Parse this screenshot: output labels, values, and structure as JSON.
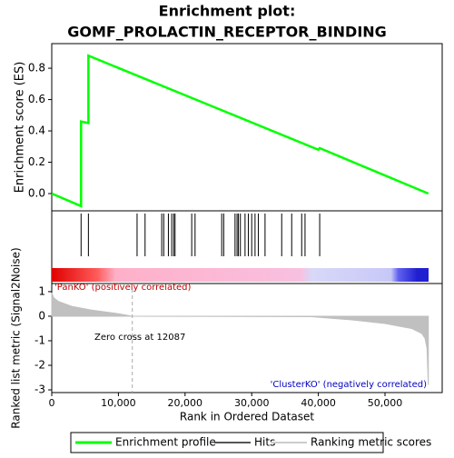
{
  "chart_data": [
    {
      "type": "line",
      "title": "Enrichment plot:",
      "subtitle": "GOMF_PROLACTIN_RECEPTOR_BINDING",
      "y_label": "Enrichment score (ES)",
      "xlim": [
        0,
        58580
      ],
      "ylim": [
        -0.11,
        0.957
      ],
      "yticks": [
        {
          "value": 0,
          "label": "0.0"
        },
        0.2,
        0.4,
        0.6,
        0.8
      ],
      "series": [
        {
          "name": "Enrichment profile",
          "color": "#00ff00",
          "x": [
            0,
            4400,
            4400,
            5500,
            5500,
            40000,
            40200,
            56500
          ],
          "values": [
            0,
            -0.08,
            0.46,
            0.45,
            0.88,
            0.28,
            0.29,
            0
          ]
        }
      ],
      "hits": {
        "name": "Hits",
        "color": "#000000",
        "x": [
          4400,
          5500,
          12800,
          14000,
          16500,
          16800,
          17500,
          18000,
          18300,
          18500,
          21000,
          21500,
          25500,
          25800,
          27500,
          27800,
          28000,
          28300,
          29000,
          29500,
          30000,
          30500,
          31000,
          32000,
          34500,
          36000,
          37500,
          38000,
          40200
        ]
      }
    },
    {
      "type": "area",
      "x_label": "Rank in Ordered Dataset",
      "y_label": "Ranked list metric (Signal2Noise)",
      "xlim": [
        0,
        58580
      ],
      "ylim": [
        -3.11,
        1.33
      ],
      "xticks": [
        0,
        {
          "value": 10000,
          "label": "10,000"
        },
        {
          "value": 20000,
          "label": "20,000"
        },
        {
          "value": 30000,
          "label": "30,000"
        },
        {
          "value": 40000,
          "label": "40,000"
        },
        {
          "value": 50000,
          "label": "50,000"
        }
      ],
      "yticks": [
        1,
        0,
        -1,
        -2,
        -3
      ],
      "series": [
        {
          "name": "Ranking metric scores",
          "color": "#c0c0c0",
          "x": [
            0,
            300,
            1000,
            3000,
            6000,
            10000,
            12087,
            39000,
            45000,
            50000,
            54000,
            55500,
            56000,
            56300,
            56500
          ],
          "values": [
            0.95,
            0.75,
            0.6,
            0.4,
            0.25,
            0.1,
            0,
            -0.02,
            -0.15,
            -0.3,
            -0.5,
            -0.7,
            -0.9,
            -1.3,
            -2.8
          ]
        }
      ],
      "zero_cross": 12087,
      "annotations": [
        "'PanKO' (positively correlated)",
        "Zero cross at 12087",
        "'ClusterKO' (negatively correlated)"
      ]
    }
  ]
}
